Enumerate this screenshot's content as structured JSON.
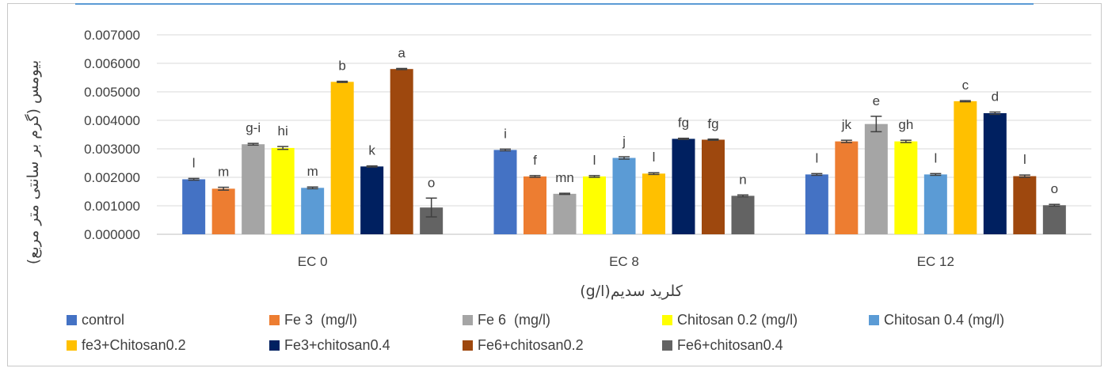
{
  "chart_data": {
    "type": "bar",
    "title": "",
    "xlabel": "کلرید سدیم(g/l)",
    "ylabel": "بیومس (گرم بر سانتی متر مربع)",
    "ylim": [
      0,
      0.007
    ],
    "yticks": [
      "0.000000",
      "0.001000",
      "0.002000",
      "0.003000",
      "0.004000",
      "0.005000",
      "0.006000",
      "0.007000"
    ],
    "grid": true,
    "legend_position": "bottom",
    "categories": [
      "EC 0",
      "EC 8",
      "EC 12"
    ],
    "series": [
      {
        "name": "control",
        "color": "#4472c4",
        "values": [
          0.00193,
          0.00296,
          0.0021
        ],
        "errors": [
          3e-05,
          3e-05,
          3e-05
        ],
        "labels": [
          "l",
          "i",
          "l"
        ]
      },
      {
        "name": "Fe 3  (mg/l)",
        "color": "#ed7d31",
        "values": [
          0.0016,
          0.00203,
          0.00326
        ],
        "errors": [
          5e-05,
          3e-05,
          4e-05
        ],
        "labels": [
          "m",
          "f",
          "jk"
        ]
      },
      {
        "name": "Fe 6  (mg/l)",
        "color": "#a5a5a5",
        "values": [
          0.00316,
          0.00142,
          0.00387
        ],
        "errors": [
          3e-05,
          2e-05,
          0.00027
        ],
        "labels": [
          "g-i",
          "mn",
          "e"
        ]
      },
      {
        "name": "Chitosan 0.2 (mg/l)",
        "color": "#ffff00",
        "values": [
          0.00303,
          0.00203,
          0.00326
        ],
        "errors": [
          5e-05,
          3e-05,
          4e-05
        ],
        "labels": [
          "hi",
          "l",
          "gh"
        ]
      },
      {
        "name": "Chitosan 0.4 (mg/l)",
        "color": "#5b9bd5",
        "values": [
          0.00163,
          0.00268,
          0.0021
        ],
        "errors": [
          3e-05,
          4e-05,
          3e-05
        ],
        "labels": [
          "m",
          "j",
          "l"
        ]
      },
      {
        "name": "fe3+Chitosan0.2",
        "color": "#ffc000",
        "values": [
          0.00535,
          0.00213,
          0.00467
        ],
        "errors": [
          2e-05,
          3e-05,
          2e-05
        ],
        "labels": [
          "b",
          "l",
          "c"
        ]
      },
      {
        "name": "Fe3+chitosan0.4",
        "color": "#002060",
        "values": [
          0.00238,
          0.00335,
          0.00425
        ],
        "errors": [
          2e-05,
          2e-05,
          4e-05
        ],
        "labels": [
          "k",
          "fg",
          "d"
        ]
      },
      {
        "name": "Fe6+chitosan0.2",
        "color": "#9e480e",
        "values": [
          0.0058,
          0.00332,
          0.00204
        ],
        "errors": [
          2e-05,
          2e-05,
          4e-05
        ],
        "labels": [
          "a",
          "fg",
          "l"
        ]
      },
      {
        "name": "Fe6+chitosan0.4",
        "color": "#636363",
        "values": [
          0.00094,
          0.00135,
          0.00102
        ],
        "errors": [
          0.00033,
          3e-05,
          3e-05
        ],
        "labels": [
          "o",
          "n",
          "o"
        ]
      }
    ]
  }
}
